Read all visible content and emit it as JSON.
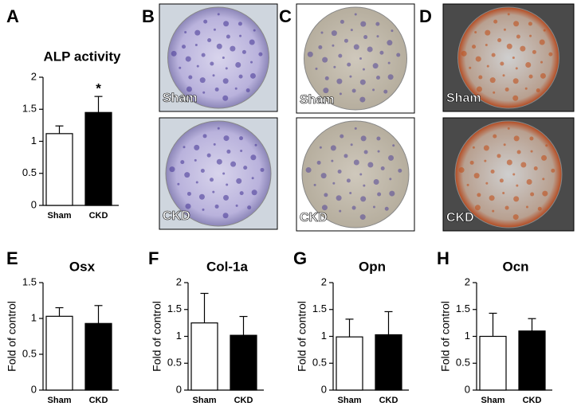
{
  "chart_data": [
    {
      "type": "bar",
      "panel": "A",
      "title": "ALP activity",
      "categories": [
        "Sham",
        "CKD"
      ],
      "values": [
        1.12,
        1.45
      ],
      "errors": [
        0.12,
        0.25
      ],
      "colors": [
        "#ffffff",
        "#000000"
      ],
      "annotation": "*",
      "ylim": [
        0,
        2
      ],
      "yticks": [
        0,
        0.5,
        1,
        1.5,
        2
      ]
    },
    {
      "type": "bar",
      "panel": "E",
      "title": "Osx",
      "ylabel": "Fold of control",
      "categories": [
        "Sham",
        "CKD"
      ],
      "values": [
        1.03,
        0.93
      ],
      "errors": [
        0.12,
        0.25
      ],
      "colors": [
        "#ffffff",
        "#000000"
      ],
      "ylim": [
        0,
        1.5
      ],
      "yticks": [
        0,
        0.5,
        1,
        1.5
      ]
    },
    {
      "type": "bar",
      "panel": "F",
      "title": "Col-1a",
      "ylabel": "Fold of control",
      "categories": [
        "Sham",
        "CKD"
      ],
      "values": [
        1.25,
        1.02
      ],
      "errors": [
        0.55,
        0.35
      ],
      "colors": [
        "#ffffff",
        "#000000"
      ],
      "ylim": [
        0,
        2
      ],
      "yticks": [
        0,
        0.5,
        1,
        1.5,
        2
      ]
    },
    {
      "type": "bar",
      "panel": "G",
      "title": "Opn",
      "ylabel": "Fold of control",
      "categories": [
        "Sham",
        "CKD"
      ],
      "values": [
        0.99,
        1.03
      ],
      "errors": [
        0.33,
        0.43
      ],
      "colors": [
        "#ffffff",
        "#000000"
      ],
      "ylim": [
        0,
        2
      ],
      "yticks": [
        0,
        0.5,
        1,
        1.5,
        2
      ]
    },
    {
      "type": "bar",
      "panel": "H",
      "title": "Ocn",
      "ylabel": "Fold of control",
      "categories": [
        "Sham",
        "CKD"
      ],
      "values": [
        1.0,
        1.1
      ],
      "errors": [
        0.43,
        0.23
      ],
      "colors": [
        "#ffffff",
        "#000000"
      ],
      "ylim": [
        0,
        2
      ],
      "yticks": [
        0,
        0.5,
        1,
        1.5,
        2
      ]
    }
  ],
  "images": [
    {
      "panel": "B",
      "captions": [
        "Sham",
        "CKD"
      ]
    },
    {
      "panel": "C",
      "captions": [
        "Sham",
        "CKD"
      ]
    },
    {
      "panel": "D",
      "captions": [
        "Sham",
        "CKD"
      ]
    }
  ]
}
